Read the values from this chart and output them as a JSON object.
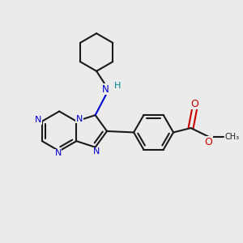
{
  "background_color": "#ebebeb",
  "bond_color": "#1a1a1a",
  "nitrogen_color": "#0000cc",
  "oxygen_color": "#cc0000",
  "nh_color": "#008888",
  "lw": 1.5,
  "figsize": [
    3.0,
    3.0
  ],
  "dpi": 100,
  "xlim": [
    0,
    10
  ],
  "ylim": [
    0,
    10
  ]
}
